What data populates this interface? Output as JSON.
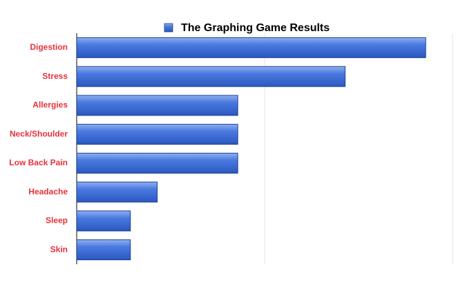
{
  "chart_data": {
    "type": "bar",
    "orientation": "horizontal",
    "categories": [
      "Digestion",
      "Stress",
      "Allergies",
      "Neck/Shoulder",
      "Low Back Pain",
      "Headache",
      "Sleep",
      "Skin"
    ],
    "series": [
      {
        "name": "The Graphing Game Results",
        "color": "#3f70d8",
        "values": [
          13,
          10,
          6,
          6,
          6,
          3,
          2,
          2
        ]
      }
    ],
    "xlim": [
      0,
      14
    ],
    "xticks": [
      0,
      7,
      14
    ],
    "grid": true,
    "legend": "top",
    "label_color": "#e8303a"
  }
}
